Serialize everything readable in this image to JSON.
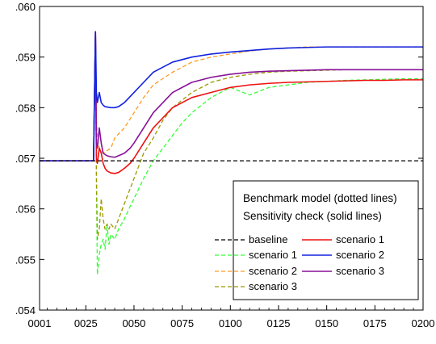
{
  "chart_data": {
    "type": "line",
    "xlim": [
      1,
      200
    ],
    "ylim": [
      0.054,
      0.06
    ],
    "x_ticks": [
      {
        "value": 1,
        "label": "0001"
      },
      {
        "value": 25,
        "label": "0025"
      },
      {
        "value": 50,
        "label": "0050"
      },
      {
        "value": 75,
        "label": "0075"
      },
      {
        "value": 100,
        "label": "0100"
      },
      {
        "value": 125,
        "label": "0125"
      },
      {
        "value": 150,
        "label": "0150"
      },
      {
        "value": 175,
        "label": "0175"
      },
      {
        "value": 200,
        "label": "0200"
      }
    ],
    "y_ticks": [
      {
        "value": 0.054,
        "label": ".054"
      },
      {
        "value": 0.055,
        "label": ".055"
      },
      {
        "value": 0.056,
        "label": ".056"
      },
      {
        "value": 0.057,
        "label": ".057"
      },
      {
        "value": 0.058,
        "label": ".058"
      },
      {
        "value": 0.059,
        "label": ".059"
      },
      {
        "value": 0.06,
        "label": ".060"
      }
    ],
    "grid": false,
    "legend": {
      "placement": "bottom-right",
      "header": [
        "Benchmark model (dotted lines)",
        "Sensitivity check (solid lines)"
      ]
    },
    "series": [
      {
        "name": "baseline",
        "color": "#000000",
        "dash": "dashed",
        "x": [
          1,
          200
        ],
        "y": [
          0.05695,
          0.05695
        ]
      },
      {
        "name": "scenario 1",
        "color": "#33ff33",
        "dash": "dashed",
        "x": [
          1,
          29,
          30,
          30.5,
          31,
          32,
          33,
          34,
          35,
          36,
          37,
          38,
          40,
          42,
          45,
          48,
          50,
          55,
          60,
          65,
          70,
          75,
          80,
          90,
          100,
          110,
          120,
          130,
          140,
          150,
          160,
          170,
          180,
          190,
          200
        ],
        "y": [
          0.05695,
          0.05695,
          0.0595,
          0.0566,
          0.0547,
          0.0551,
          0.0553,
          0.0554,
          0.0552,
          0.0557,
          0.0553,
          0.0555,
          0.0554,
          0.0556,
          0.0558,
          0.05605,
          0.0562,
          0.0566,
          0.05695,
          0.0572,
          0.05745,
          0.0577,
          0.0579,
          0.0582,
          0.0584,
          0.05825,
          0.0584,
          0.05845,
          0.0585,
          0.05852,
          0.05854,
          0.05855,
          0.05856,
          0.05857,
          0.05857
        ]
      },
      {
        "name": "scenario 2",
        "color": "#ff9922",
        "dash": "dashed",
        "x": [
          1,
          29,
          30,
          30.5,
          31,
          32,
          34,
          36,
          38,
          40,
          45,
          50,
          55,
          60,
          70,
          80,
          90,
          100,
          110,
          120,
          130,
          140,
          150,
          160,
          170,
          180,
          190,
          200
        ],
        "y": [
          0.05695,
          0.05695,
          0.0595,
          0.0578,
          0.0574,
          0.0572,
          0.0571,
          0.05715,
          0.0572,
          0.0574,
          0.0576,
          0.0579,
          0.0582,
          0.05845,
          0.0587,
          0.0589,
          0.059,
          0.05906,
          0.05912,
          0.05916,
          0.05918,
          0.0592,
          0.0592,
          0.0592,
          0.0592,
          0.0592,
          0.0592,
          0.0592
        ]
      },
      {
        "name": "scenario 3",
        "color": "#999900",
        "dash": "dashed",
        "x": [
          1,
          29,
          30,
          30.5,
          31,
          32,
          33,
          34,
          35,
          36,
          37,
          38,
          40,
          42,
          45,
          48,
          50,
          55,
          60,
          65,
          70,
          75,
          80,
          90,
          100,
          110,
          120,
          130,
          140,
          150,
          160,
          170,
          180,
          190,
          200
        ],
        "y": [
          0.05695,
          0.05695,
          0.0595,
          0.0567,
          0.0554,
          0.0556,
          0.0562,
          0.0558,
          0.0556,
          0.0557,
          0.0556,
          0.0557,
          0.0556,
          0.0558,
          0.0561,
          0.0564,
          0.0566,
          0.0571,
          0.0574,
          0.05775,
          0.058,
          0.05815,
          0.0583,
          0.0585,
          0.0586,
          0.05866,
          0.0587,
          0.05872,
          0.05873,
          0.05874,
          0.05875,
          0.05875,
          0.05875,
          0.05875,
          0.05875
        ]
      },
      {
        "name": "scenario 1",
        "color": "#ee1111",
        "dash": "solid",
        "x": [
          1,
          29,
          30,
          30.5,
          31,
          32,
          33,
          34,
          35,
          36,
          38,
          40,
          42,
          45,
          48,
          50,
          55,
          60,
          65,
          70,
          75,
          80,
          90,
          100,
          110,
          120,
          130,
          140,
          150,
          160,
          170,
          180,
          190,
          200
        ],
        "y": [
          0.05695,
          0.05695,
          0.0595,
          0.057,
          0.0569,
          0.0572,
          0.0571,
          0.0569,
          0.0568,
          0.05675,
          0.05671,
          0.0567,
          0.05672,
          0.0568,
          0.0569,
          0.057,
          0.0573,
          0.0576,
          0.0578,
          0.058,
          0.0581,
          0.0582,
          0.0583,
          0.0584,
          0.05845,
          0.05848,
          0.0585,
          0.05851,
          0.05852,
          0.05853,
          0.05854,
          0.05854,
          0.05855,
          0.05855
        ]
      },
      {
        "name": "scenario 2",
        "color": "#1122dd",
        "dash": "solid",
        "x": [
          1,
          29,
          30,
          30.5,
          31,
          32,
          33,
          34,
          35,
          38,
          40,
          42,
          45,
          50,
          55,
          60,
          70,
          80,
          90,
          100,
          110,
          120,
          130,
          140,
          150,
          160,
          170,
          180,
          190,
          200
        ],
        "y": [
          0.05695,
          0.05695,
          0.0595,
          0.0583,
          0.0581,
          0.0583,
          0.0581,
          0.05805,
          0.05802,
          0.058,
          0.058,
          0.05802,
          0.0581,
          0.0583,
          0.0585,
          0.0587,
          0.0589,
          0.059,
          0.05906,
          0.0591,
          0.05913,
          0.05916,
          0.05918,
          0.05919,
          0.0592,
          0.0592,
          0.0592,
          0.0592,
          0.0592,
          0.0592
        ]
      },
      {
        "name": "scenario 3",
        "color": "#881199",
        "dash": "solid",
        "x": [
          1,
          29,
          30,
          30.5,
          31,
          32,
          33,
          34,
          36,
          38,
          40,
          42,
          45,
          48,
          50,
          55,
          60,
          65,
          70,
          75,
          80,
          90,
          100,
          110,
          120,
          130,
          140,
          150,
          160,
          170,
          180,
          190,
          200
        ],
        "y": [
          0.05695,
          0.05695,
          0.0595,
          0.0573,
          0.0572,
          0.0576,
          0.0573,
          0.0571,
          0.05705,
          0.05703,
          0.05702,
          0.05705,
          0.0571,
          0.0572,
          0.0573,
          0.0576,
          0.0579,
          0.0581,
          0.0583,
          0.0584,
          0.0585,
          0.0586,
          0.05866,
          0.0587,
          0.05872,
          0.05873,
          0.05874,
          0.05875,
          0.05875,
          0.05875,
          0.05875,
          0.05875,
          0.05875
        ]
      }
    ]
  }
}
